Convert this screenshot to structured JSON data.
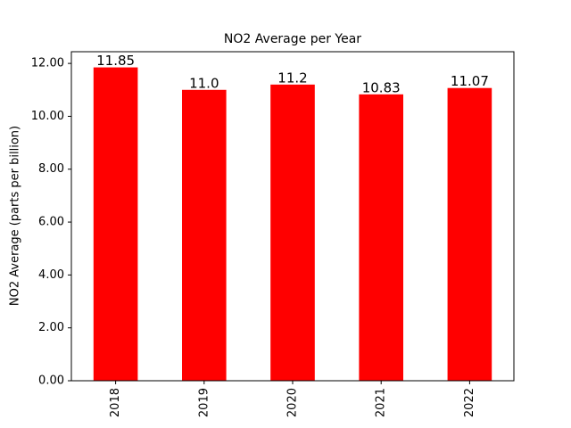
{
  "chart_data": {
    "type": "bar",
    "title": "NO2 Average per Year",
    "y_label": "NO2 Average (parts per billion)",
    "categories": [
      "2018",
      "2019",
      "2020",
      "2021",
      "2022"
    ],
    "values": [
      11.85,
      11.0,
      11.2,
      10.83,
      11.07
    ],
    "value_labels": [
      "11.85",
      "11.0",
      "11.2",
      "10.83",
      "11.07"
    ],
    "color": "#ff0000",
    "ylim": [
      0,
      12.4425
    ],
    "yticks": [
      {
        "value": 0,
        "label": "0.00"
      },
      {
        "value": 2,
        "label": "2.00"
      },
      {
        "value": 4,
        "label": "4.00"
      },
      {
        "value": 6,
        "label": "6.00"
      },
      {
        "value": 8,
        "label": "8.00"
      },
      {
        "value": 10,
        "label": "10.00"
      },
      {
        "value": 12,
        "label": "12.00"
      }
    ]
  }
}
